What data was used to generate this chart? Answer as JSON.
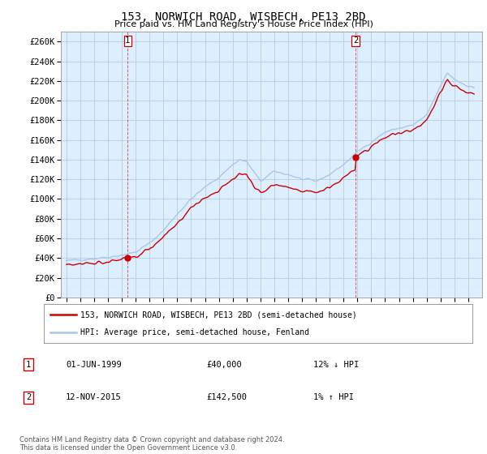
{
  "title": "153, NORWICH ROAD, WISBECH, PE13 2BD",
  "subtitle": "Price paid vs. HM Land Registry's House Price Index (HPI)",
  "ylim": [
    0,
    270000
  ],
  "yticks": [
    0,
    20000,
    40000,
    60000,
    80000,
    100000,
    120000,
    140000,
    160000,
    180000,
    200000,
    220000,
    240000,
    260000
  ],
  "hpi_color": "#a8c8e8",
  "price_color": "#cc0000",
  "marker_color": "#cc0000",
  "background_color": "#ffffff",
  "plot_bg_color": "#ddeeff",
  "grid_color": "#bbccdd",
  "legend_label_price": "153, NORWICH ROAD, WISBECH, PE13 2BD (semi-detached house)",
  "legend_label_hpi": "HPI: Average price, semi-detached house, Fenland",
  "transaction1_date": "01-JUN-1999",
  "transaction1_price": "£40,000",
  "transaction1_info": "12% ↓ HPI",
  "transaction2_date": "12-NOV-2015",
  "transaction2_price": "£142,500",
  "transaction2_info": "1% ↑ HPI",
  "footer": "Contains HM Land Registry data © Crown copyright and database right 2024.\nThis data is licensed under the Open Government Licence v3.0.",
  "sale1_year": 1999.42,
  "sale1_price": 40000,
  "sale2_year": 2015.87,
  "sale2_price": 142500
}
